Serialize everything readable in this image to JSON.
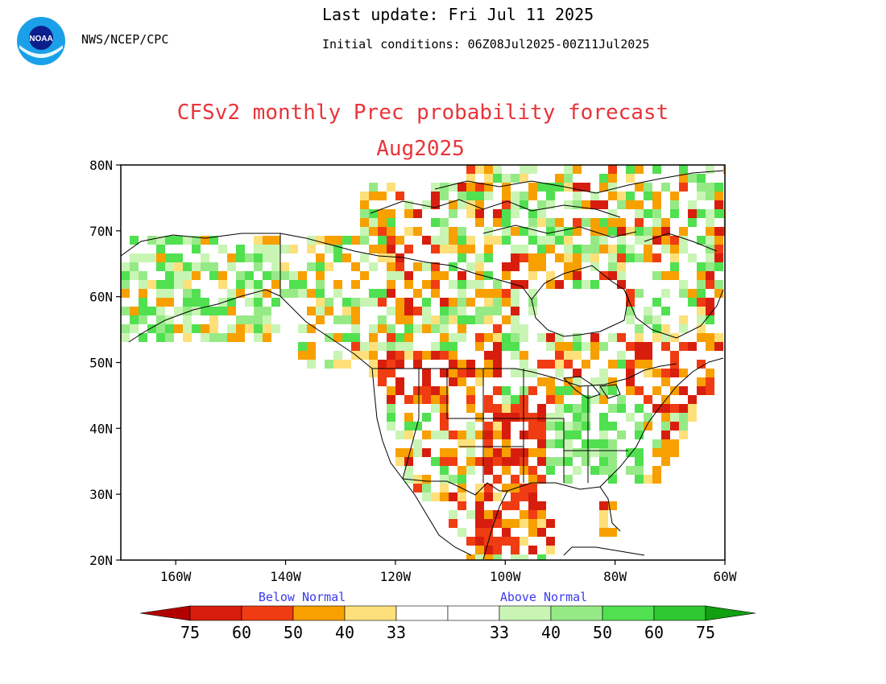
{
  "header": {
    "agency": "NWS/NCEP/CPC",
    "last_update": "Last update: Fri Jul 11 2025",
    "initial_conditions": "Initial conditions: 06Z08Jul2025-00Z11Jul2025"
  },
  "title": {
    "line1": "CFSv2 monthly Prec probability forecast",
    "line2": "Aug2025"
  },
  "logo": {
    "icon": "noaa-logo-icon",
    "text": "NOAA"
  },
  "axes": {
    "y_ticks": [
      "80N",
      "70N",
      "60N",
      "50N",
      "40N",
      "30N",
      "20N"
    ],
    "x_ticks": [
      "160W",
      "140W",
      "120W",
      "100W",
      "80W",
      "60W"
    ],
    "lon_range": [
      -170,
      -60
    ],
    "lat_range": [
      20,
      80
    ]
  },
  "legend": {
    "below_label": "Below Normal",
    "above_label": "Above Normal",
    "below_colors": [
      "#b00000",
      "#d71e0e",
      "#f03c12",
      "#f7a000",
      "#fde07a"
    ],
    "above_colors": [
      "#c8f5b4",
      "#96ea86",
      "#50e050",
      "#30c830",
      "#10a010"
    ],
    "tick_labels": [
      "75",
      "60",
      "50",
      "40",
      "33",
      "33",
      "40",
      "50",
      "60",
      "75"
    ]
  },
  "colors": {
    "title": "#e8343a",
    "legend_text": "#3a3af0"
  }
}
